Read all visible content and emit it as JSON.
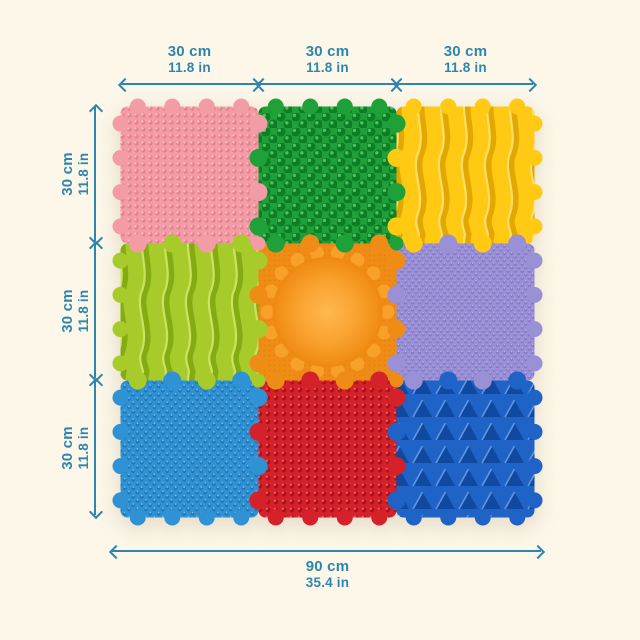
{
  "figure": {
    "background": "#FCF7E9",
    "dimension_color": "#2E86AE",
    "top_labels": [
      {
        "cm": "30 cm",
        "in": "11.8 in"
      },
      {
        "cm": "30 cm",
        "in": "11.8 in"
      },
      {
        "cm": "30 cm",
        "in": "11.8 in"
      }
    ],
    "left_labels": [
      {
        "cm": "30 cm",
        "in": "11.8 in"
      },
      {
        "cm": "30 cm",
        "in": "11.8 in"
      },
      {
        "cm": "30 cm",
        "in": "11.8 in"
      }
    ],
    "bottom_label": {
      "cm": "90 cm",
      "in": "35.4 in"
    }
  },
  "mat": {
    "rows": 3,
    "cols": 3,
    "tiles": [
      {
        "name": "pink-nubs",
        "texture": "dots",
        "base": "#F49CA6",
        "dark": "#E4818E",
        "light": "#FCC3CA",
        "spacing": 7,
        "r": 2.1
      },
      {
        "name": "green-cones",
        "texture": "cones",
        "base": "#1FA039",
        "dark": "#0C7F24",
        "light": "#4DC162"
      },
      {
        "name": "yellow-waves",
        "texture": "waves",
        "base": "#FFC914",
        "dark": "#E2A700",
        "light": "#FFE473"
      },
      {
        "name": "lime-waves",
        "texture": "waves",
        "base": "#A6CB2B",
        "dark": "#85AB12",
        "light": "#D2E868"
      },
      {
        "name": "orange-dome",
        "texture": "dome",
        "base": "#EF8C15",
        "dark": "#DD7A08",
        "light": "#F9A22E"
      },
      {
        "name": "purple-grain",
        "texture": "dots",
        "base": "#9A90D6",
        "dark": "#8377C7",
        "light": "#BDB5E9",
        "spacing": 5,
        "r": 1.5,
        "diag": true
      },
      {
        "name": "blue-grain",
        "texture": "dots",
        "base": "#2E92D5",
        "dark": "#2277B4",
        "light": "#74BDEA",
        "spacing": 6,
        "r": 1.8,
        "diag": true
      },
      {
        "name": "red-nubs",
        "texture": "dots",
        "base": "#D5212A",
        "dark": "#AC141C",
        "light": "#F2585F",
        "spacing": 8,
        "r": 2.4
      },
      {
        "name": "royal-pyramids",
        "texture": "pyramids",
        "base": "#1F63C6",
        "dark": "#1049A0",
        "light": "#6296E3"
      }
    ]
  }
}
